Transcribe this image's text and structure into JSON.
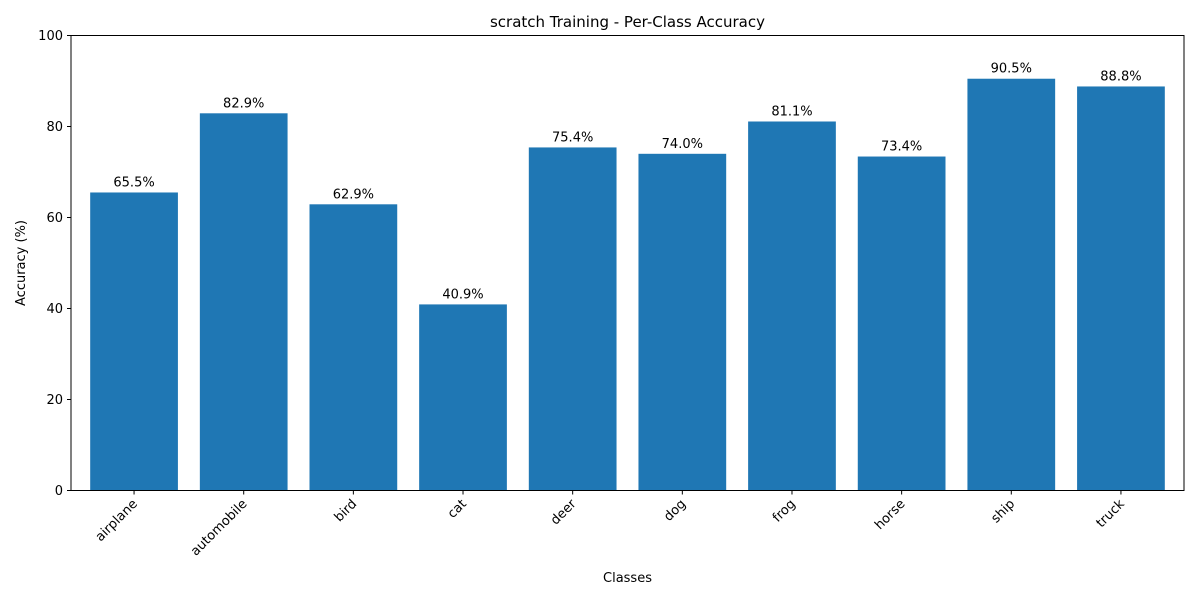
{
  "chart_data": {
    "type": "bar",
    "title": "scratch Training - Per-Class Accuracy",
    "xlabel": "Classes",
    "ylabel": "Accuracy (%)",
    "categories": [
      "airplane",
      "automobile",
      "bird",
      "cat",
      "deer",
      "dog",
      "frog",
      "horse",
      "ship",
      "truck"
    ],
    "values": [
      65.5,
      82.9,
      62.9,
      40.9,
      75.4,
      74.0,
      81.1,
      73.4,
      90.5,
      88.8
    ],
    "value_labels": [
      "65.5%",
      "82.9%",
      "62.9%",
      "40.9%",
      "75.4%",
      "74.0%",
      "81.1%",
      "73.4%",
      "90.5%",
      "88.8%"
    ],
    "ylim": [
      0,
      100
    ],
    "yticks": [
      0,
      20,
      40,
      60,
      80,
      100
    ],
    "ytick_labels": [
      "0",
      "20",
      "40",
      "60",
      "80",
      "100"
    ],
    "grid": false,
    "legend": "none",
    "bar_color": "#1f77b4"
  }
}
